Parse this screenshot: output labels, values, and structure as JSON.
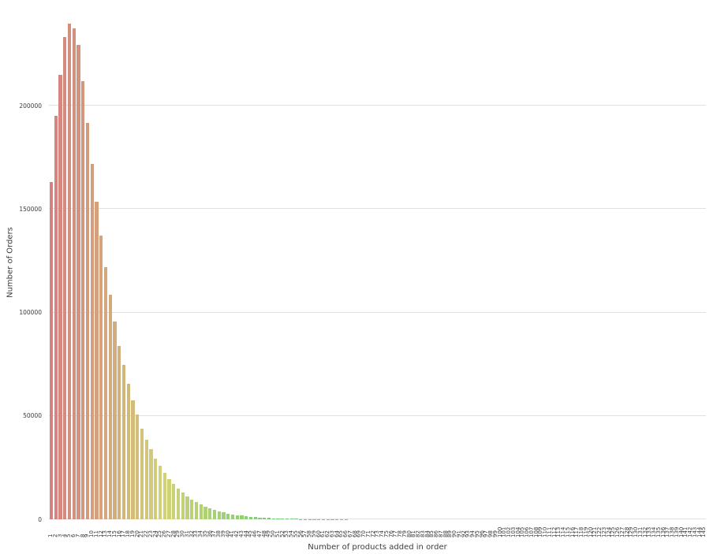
{
  "chart_data": {
    "type": "bar",
    "title": "",
    "xlabel": "Number of products added in order",
    "ylabel": "Number of Orders",
    "ylim": [
      0,
      248000
    ],
    "yticks": [
      0,
      50000,
      100000,
      150000,
      200000
    ],
    "grid": "horizontal",
    "legend": "none",
    "background": "#ffffff",
    "grid_color": "#e0e0e0",
    "text_color": "#3c3c3c",
    "palette": {
      "type": "hsl-gradient",
      "hue_start": 0,
      "hue_end": 350,
      "saturation": 50,
      "lightness_start": 67,
      "lightness_end": 54
    },
    "categories": [
      1,
      2,
      3,
      4,
      5,
      6,
      7,
      8,
      9,
      10,
      11,
      12,
      13,
      14,
      15,
      16,
      17,
      18,
      19,
      20,
      21,
      22,
      23,
      24,
      25,
      26,
      27,
      28,
      29,
      30,
      31,
      32,
      33,
      34,
      35,
      36,
      37,
      38,
      39,
      40,
      41,
      42,
      43,
      44,
      45,
      46,
      47,
      48,
      49,
      50,
      51,
      52,
      53,
      54,
      55,
      56,
      57,
      58,
      59,
      60,
      61,
      62,
      63,
      64,
      65,
      66,
      67,
      68,
      69,
      70,
      71,
      72,
      73,
      74,
      75,
      76,
      77,
      78,
      79,
      80,
      81,
      82,
      83,
      84,
      85,
      86,
      87,
      88,
      89,
      90,
      91,
      92,
      93,
      94,
      95,
      96,
      97,
      98,
      99,
      100,
      101,
      102,
      103,
      104,
      105,
      106,
      107,
      108,
      109,
      110,
      111,
      112,
      113,
      114,
      115,
      116,
      117,
      118,
      119,
      120,
      121,
      122,
      123,
      124,
      125,
      126,
      127,
      128,
      129,
      130,
      131,
      132,
      133,
      134,
      135,
      136,
      137,
      138,
      139,
      140,
      141,
      142,
      143,
      144,
      145
    ],
    "values": [
      163000,
      195000,
      215000,
      233000,
      239500,
      237500,
      229500,
      212000,
      191500,
      172000,
      153500,
      137000,
      122000,
      108500,
      95500,
      84000,
      74500,
      65500,
      57500,
      50500,
      44000,
      38500,
      34000,
      29500,
      26000,
      22500,
      19500,
      17000,
      14800,
      12800,
      11000,
      9500,
      8200,
      7100,
      6100,
      5200,
      4500,
      3900,
      3300,
      2850,
      2400,
      2050,
      1750,
      1500,
      1270,
      1080,
      910,
      770,
      650,
      550,
      460,
      390,
      330,
      280,
      230,
      195,
      165,
      140,
      115,
      98,
      82,
      70,
      58,
      49,
      41,
      35,
      29,
      25,
      21,
      18,
      15,
      13,
      11,
      9,
      8,
      7,
      6,
      5,
      5,
      4,
      4,
      3,
      3,
      3,
      2,
      2,
      2,
      2,
      2,
      1,
      1,
      1,
      1,
      1,
      1,
      1,
      1,
      1,
      1,
      1,
      1,
      1,
      1,
      1,
      1,
      1,
      1,
      1,
      1,
      1,
      1,
      1,
      1,
      1,
      1,
      1,
      1,
      1,
      1,
      1,
      1,
      1,
      1,
      1,
      1,
      1,
      1,
      1,
      1,
      1,
      1,
      1,
      1,
      1,
      1,
      1,
      1,
      1,
      1,
      1,
      1,
      1,
      1,
      1,
      1
    ]
  }
}
